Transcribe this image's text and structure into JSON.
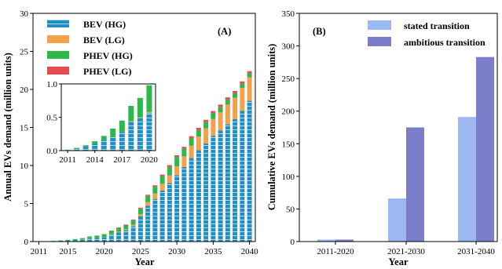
{
  "chart_data": [
    {
      "type": "bar",
      "stacked": true,
      "panel_label": "(A)",
      "xlabel": "Year",
      "ylabel": "Annual EVs demand (million units)",
      "ylim": [
        0,
        30
      ],
      "yticks": [
        0,
        5,
        10,
        15,
        20,
        25,
        30
      ],
      "xticks": [
        2011,
        2015,
        2020,
        2025,
        2030,
        2035,
        2040
      ],
      "legend_position": "top-left",
      "x": [
        2011,
        2012,
        2013,
        2014,
        2015,
        2016,
        2017,
        2018,
        2019,
        2020,
        2021,
        2022,
        2023,
        2024,
        2025,
        2026,
        2027,
        2028,
        2029,
        2030,
        2031,
        2032,
        2033,
        2034,
        2035,
        2036,
        2037,
        2038,
        2039,
        2040
      ],
      "series": [
        {
          "name": "BEV (HG)",
          "color": "#1f8fc4",
          "hatch": true,
          "values": [
            0.01,
            0.03,
            0.06,
            0.11,
            0.16,
            0.2,
            0.28,
            0.43,
            0.49,
            0.56,
            0.9,
            1.2,
            1.5,
            2.0,
            3.3,
            4.7,
            5.6,
            6.7,
            7.7,
            8.7,
            9.8,
            11.0,
            12.0,
            12.9,
            13.9,
            14.6,
            15.4,
            16.1,
            17.2,
            18.5
          ]
        },
        {
          "name": "BEV (LG)",
          "color": "#f5a04a",
          "values": [
            0.0,
            0.0,
            0.0,
            0.0,
            0.0,
            0.0,
            0.0,
            0.01,
            0.01,
            0.02,
            0.05,
            0.1,
            0.15,
            0.2,
            0.3,
            0.5,
            0.7,
            0.9,
            1.0,
            1.2,
            1.4,
            1.6,
            1.8,
            2.0,
            2.2,
            2.4,
            2.6,
            2.8,
            3.0,
            3.1
          ]
        },
        {
          "name": "PHEV (HG)",
          "color": "#2db84a",
          "values": [
            0.0,
            0.01,
            0.02,
            0.03,
            0.06,
            0.13,
            0.17,
            0.23,
            0.29,
            0.4,
            0.45,
            0.5,
            0.55,
            0.6,
            0.7,
            0.8,
            0.9,
            1.0,
            1.1,
            1.2,
            1.0,
            0.95,
            0.85,
            0.8,
            0.75,
            0.7,
            0.65,
            0.6,
            0.55,
            0.5
          ]
        },
        {
          "name": "PHEV (LG)",
          "color": "#e84b4b",
          "values": [
            0.0,
            0.0,
            0.0,
            0.0,
            0.0,
            0.0,
            0.0,
            0.0,
            0.0,
            0.0,
            0.05,
            0.05,
            0.05,
            0.1,
            0.15,
            0.15,
            0.2,
            0.2,
            0.25,
            0.25,
            0.25,
            0.3,
            0.3,
            0.3,
            0.3,
            0.3,
            0.3,
            0.3,
            0.3,
            0.3
          ]
        }
      ],
      "inset": {
        "ylim": [
          0,
          1.0
        ],
        "yticks": [
          "0.0",
          "0.5",
          "1.0"
        ],
        "xticks": [
          2011,
          2014,
          2017,
          2020
        ],
        "x": [
          2011,
          2012,
          2013,
          2014,
          2015,
          2016,
          2017,
          2018,
          2019,
          2020
        ],
        "series": [
          {
            "name": "BEV (HG)",
            "values": [
              0.01,
              0.03,
              0.06,
              0.11,
              0.16,
              0.2,
              0.28,
              0.43,
              0.49,
              0.56
            ]
          },
          {
            "name": "BEV (LG)",
            "values": [
              0.0,
              0.0,
              0.0,
              0.0,
              0.0,
              0.0,
              0.0,
              0.01,
              0.01,
              0.02
            ]
          },
          {
            "name": "PHEV (HG)",
            "values": [
              0.0,
              0.01,
              0.02,
              0.03,
              0.06,
              0.13,
              0.17,
              0.23,
              0.29,
              0.4
            ]
          },
          {
            "name": "PHEV (LG)",
            "values": [
              0.0,
              0.0,
              0.0,
              0.0,
              0.0,
              0.0,
              0.0,
              0.0,
              0.0,
              0.0
            ]
          }
        ]
      }
    },
    {
      "type": "bar",
      "panel_label": "(B)",
      "xlabel": "Year",
      "ylabel": "Cumulative EVs demand (million units)",
      "ylim": [
        0,
        350
      ],
      "yticks": [
        0,
        50,
        100,
        150,
        200,
        250,
        300,
        350
      ],
      "categories": [
        "2011-2020",
        "2021-2030",
        "2031-2040"
      ],
      "legend_position": "top-right",
      "series": [
        {
          "name": "stated transition",
          "color": "#9bb8f0",
          "values": [
            3,
            66,
            191
          ]
        },
        {
          "name": "ambitious transition",
          "color": "#7b7ec8",
          "values": [
            3,
            175,
            283
          ]
        }
      ]
    }
  ]
}
